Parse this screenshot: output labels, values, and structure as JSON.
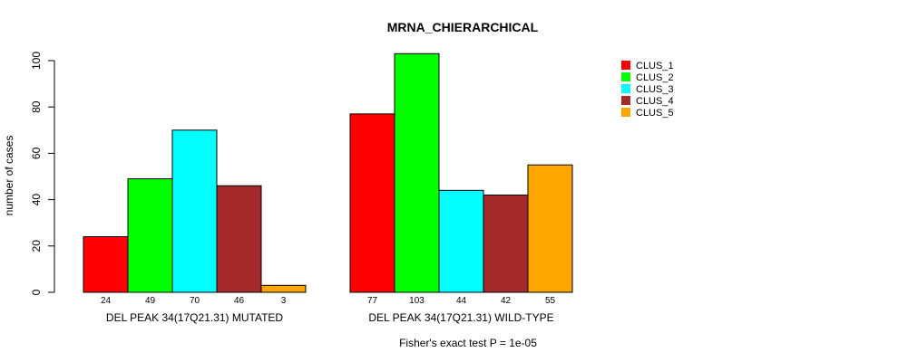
{
  "chart_data": {
    "type": "bar",
    "title": "MRNA_CHIERARCHICAL",
    "ylabel": "number of cases",
    "xlabel": "",
    "ylim": [
      0,
      100
    ],
    "yticks": [
      0,
      20,
      40,
      60,
      80,
      100
    ],
    "footnote": "Fisher's exact test P = 1e-05",
    "groups": [
      {
        "name": "DEL PEAK 34(17Q21.31) MUTATED",
        "values": [
          24,
          49,
          70,
          46,
          3
        ]
      },
      {
        "name": "DEL PEAK 34(17Q21.31) WILD-TYPE",
        "values": [
          77,
          103,
          44,
          42,
          55
        ]
      }
    ],
    "series": [
      {
        "name": "CLUS_1",
        "color": "#ff0000"
      },
      {
        "name": "CLUS_2",
        "color": "#00ff00"
      },
      {
        "name": "CLUS_3",
        "color": "#00ffff"
      },
      {
        "name": "CLUS_4",
        "color": "#a52a2a"
      },
      {
        "name": "CLUS_5",
        "color": "#ffa500"
      }
    ]
  }
}
